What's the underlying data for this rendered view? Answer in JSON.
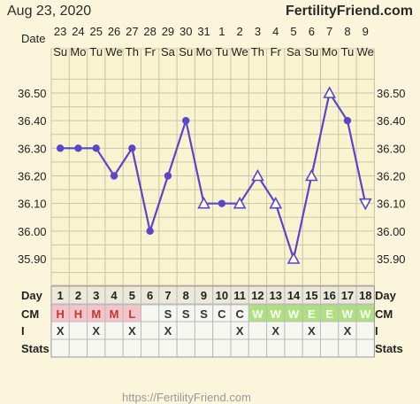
{
  "header": {
    "date": "Aug 23, 2020",
    "brand": "FertilityFriend.com"
  },
  "footer": {
    "url": "https://FertilityFriend.com"
  },
  "colors": {
    "line": "#5b45c9",
    "grid": "#c9c6a6",
    "plot_bg": "#faf3d0",
    "cm_red": "#f4c4cc",
    "cm_green": "#aee07e",
    "row_bg": "#f7f7f2"
  },
  "chart_data": {
    "type": "line",
    "title": "",
    "date_label": "Date",
    "dates": [
      "23",
      "24",
      "25",
      "26",
      "27",
      "28",
      "29",
      "30",
      "31",
      "1",
      "2",
      "3",
      "4",
      "5",
      "6",
      "7",
      "8",
      "9"
    ],
    "weekdays": [
      "Su",
      "Mo",
      "Tu",
      "We",
      "Th",
      "Fr",
      "Sa",
      "Su",
      "Mo",
      "Tu",
      "We",
      "Th",
      "Fr",
      "Sa",
      "Su",
      "Mo",
      "Tu",
      "We"
    ],
    "series": [
      {
        "values": [
          36.3,
          36.3,
          36.3,
          36.2,
          36.3,
          36.0,
          36.2,
          36.4,
          36.1,
          36.1,
          36.1,
          36.2,
          36.1,
          35.9,
          36.2,
          36.5,
          36.4,
          36.1
        ],
        "markers": [
          "circle",
          "circle",
          "circle",
          "circle",
          "circle",
          "circle",
          "circle",
          "circle",
          "triangle",
          "circle",
          "triangle",
          "triangle",
          "triangle",
          "triangle",
          "triangle",
          "triangle",
          "circle",
          "triangle-down"
        ]
      }
    ],
    "yticks": [
      "35.90",
      "36.00",
      "36.10",
      "36.20",
      "36.30",
      "36.40",
      "36.50"
    ],
    "ylim": [
      35.85,
      36.55
    ],
    "grid": true,
    "table": {
      "day_label": "Day",
      "cm_label": "CM",
      "i_label": "I",
      "stats_label": "Stats",
      "days": [
        "1",
        "2",
        "3",
        "4",
        "5",
        "6",
        "7",
        "8",
        "9",
        "10",
        "11",
        "12",
        "13",
        "14",
        "15",
        "16",
        "17",
        "18"
      ],
      "cm": [
        "H",
        "H",
        "M",
        "M",
        "L",
        "",
        "S",
        "S",
        "S",
        "C",
        "C",
        "W",
        "W",
        "W",
        "E",
        "E",
        "W",
        "W"
      ],
      "i": [
        "X",
        "",
        "X",
        "",
        "X",
        "",
        "X",
        "",
        "",
        "",
        "X",
        "",
        "X",
        "",
        "X",
        "",
        "X",
        ""
      ],
      "stats": [
        "",
        "",
        "",
        "",
        "",
        "",
        "",
        "",
        "",
        "",
        "",
        "",
        "",
        "",
        "",
        "",
        "",
        ""
      ]
    }
  }
}
